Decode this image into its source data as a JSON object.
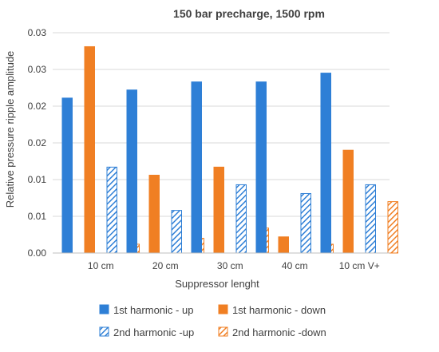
{
  "chart_data": {
    "type": "bar",
    "title": "150 bar precharge, 1500 rpm",
    "xlabel": "Suppressor lenght",
    "ylabel": "Relative pressure ripple amplitude",
    "categories": [
      "10 cm",
      "20 cm",
      "30 cm",
      "40 cm",
      "10 cm V+"
    ],
    "yticks": [
      0,
      0.005,
      0.01,
      0.015,
      0.02,
      0.025,
      0.03
    ],
    "ytick_labels": [
      "0.00",
      "0.01",
      "0.01",
      "0.02",
      "0.02",
      "0.03",
      "0.03"
    ],
    "ylim": [
      0,
      0.03
    ],
    "grid": true,
    "legend_position": "bottom",
    "series": [
      {
        "name": "1st harmonic - up",
        "values": [
          0.0211,
          0.0222,
          0.0233,
          0.0233,
          0.0245
        ],
        "color": "#2e7fd6",
        "pattern": "solid"
      },
      {
        "name": "1st harmonic - down",
        "values": [
          0.0281,
          0.0106,
          0.0117,
          0.0022,
          0.014
        ],
        "color": "#f07f23",
        "pattern": "solid"
      },
      {
        "name": "2nd harmonic -up",
        "values": [
          0.0117,
          0.0058,
          0.0093,
          0.0081,
          0.0093
        ],
        "color": "#2e7fd6",
        "pattern": "hatch"
      },
      {
        "name": "2nd harmonic -down",
        "values": [
          0.0012,
          0.002,
          0.0034,
          0.0012,
          0.007
        ],
        "color": "#f07f23",
        "pattern": "hatch"
      }
    ]
  }
}
